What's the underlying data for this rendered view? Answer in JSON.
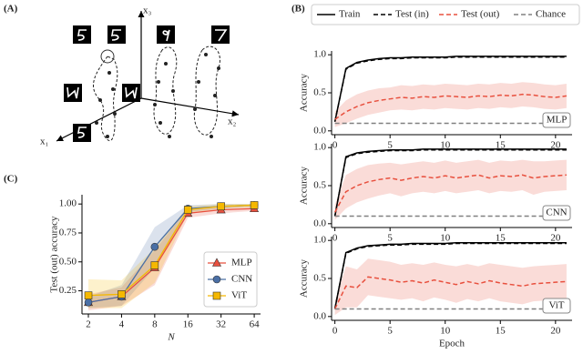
{
  "panel_labels": [
    "(A)",
    "(B)",
    "(C)"
  ],
  "diagram": {
    "axis_labels": [
      "x₁",
      "x₂",
      "x₃"
    ]
  },
  "chart_data": [
    {
      "type": "line",
      "label": "MLP",
      "ylabel": "Accuracy",
      "x": [
        0,
        1,
        2,
        3,
        4,
        5,
        6,
        7,
        8,
        9,
        10,
        11,
        12,
        13,
        14,
        15,
        16,
        17,
        18,
        19,
        20,
        21
      ],
      "xlim": [
        -0.3,
        21.5
      ],
      "xticks": [
        0,
        5,
        10,
        15,
        20
      ],
      "ylim": [
        -0.05,
        1.05
      ],
      "yticks": [
        {
          "value": 0,
          "label": "0.0"
        },
        {
          "value": 0.5,
          "label": "0.5"
        },
        {
          "value": 1,
          "label": "1.0"
        }
      ],
      "series": [
        {
          "name": "Train",
          "color": "#000000",
          "linestyle": "solid",
          "values": [
            0.12,
            0.82,
            0.9,
            0.93,
            0.95,
            0.96,
            0.96,
            0.97,
            0.97,
            0.97,
            0.97,
            0.98,
            0.98,
            0.98,
            0.98,
            0.98,
            0.98,
            0.98,
            0.98,
            0.98,
            0.98,
            0.98
          ]
        },
        {
          "name": "Test (in)",
          "color": "#000000",
          "linestyle": "dashed",
          "values": [
            0.12,
            0.81,
            0.89,
            0.92,
            0.94,
            0.95,
            0.95,
            0.96,
            0.96,
            0.96,
            0.96,
            0.97,
            0.97,
            0.97,
            0.97,
            0.97,
            0.97,
            0.97,
            0.97,
            0.97,
            0.97,
            0.97
          ]
        },
        {
          "name": "Test (out)",
          "color": "#e8503e",
          "linestyle": "dashed",
          "values": [
            0.15,
            0.25,
            0.32,
            0.37,
            0.4,
            0.42,
            0.44,
            0.43,
            0.45,
            0.44,
            0.46,
            0.45,
            0.44,
            0.46,
            0.45,
            0.47,
            0.46,
            0.48,
            0.47,
            0.45,
            0.44,
            0.46
          ],
          "band": {
            "lower": [
              0.05,
              0.1,
              0.16,
              0.21,
              0.24,
              0.27,
              0.28,
              0.27,
              0.29,
              0.28,
              0.3,
              0.29,
              0.28,
              0.3,
              0.29,
              0.31,
              0.3,
              0.32,
              0.31,
              0.29,
              0.28,
              0.3
            ],
            "upper": [
              0.25,
              0.4,
              0.48,
              0.53,
              0.56,
              0.57,
              0.6,
              0.59,
              0.61,
              0.6,
              0.62,
              0.61,
              0.6,
              0.62,
              0.61,
              0.63,
              0.62,
              0.64,
              0.63,
              0.61,
              0.6,
              0.62
            ]
          }
        },
        {
          "name": "Chance",
          "color": "#808080",
          "linestyle": "dashed",
          "values": [
            0.1,
            0.1,
            0.1,
            0.1,
            0.1,
            0.1,
            0.1,
            0.1,
            0.1,
            0.1,
            0.1,
            0.1,
            0.1,
            0.1,
            0.1,
            0.1,
            0.1,
            0.1,
            0.1,
            0.1,
            0.1,
            0.1
          ]
        }
      ]
    },
    {
      "type": "line",
      "label": "CNN",
      "ylabel": "Accuracy",
      "x": [
        0,
        1,
        2,
        3,
        4,
        5,
        6,
        7,
        8,
        9,
        10,
        11,
        12,
        13,
        14,
        15,
        16,
        17,
        18,
        19,
        20,
        21
      ],
      "xlim": [
        -0.3,
        21.5
      ],
      "xticks": [
        0,
        5,
        10,
        15,
        20
      ],
      "ylim": [
        -0.05,
        1.05
      ],
      "yticks": [
        {
          "value": 0,
          "label": "0.0"
        },
        {
          "value": 0.5,
          "label": "0.5"
        },
        {
          "value": 1,
          "label": "1.0"
        }
      ],
      "series": [
        {
          "color": "#000000",
          "linestyle": "solid",
          "values": [
            0.1,
            0.88,
            0.93,
            0.95,
            0.96,
            0.97,
            0.97,
            0.97,
            0.98,
            0.98,
            0.98,
            0.98,
            0.98,
            0.98,
            0.98,
            0.98,
            0.98,
            0.98,
            0.98,
            0.98,
            0.98,
            0.98
          ]
        },
        {
          "color": "#000000",
          "linestyle": "dashed",
          "values": [
            0.1,
            0.87,
            0.92,
            0.94,
            0.95,
            0.96,
            0.96,
            0.96,
            0.97,
            0.97,
            0.97,
            0.97,
            0.97,
            0.97,
            0.97,
            0.97,
            0.97,
            0.97,
            0.97,
            0.97,
            0.97,
            0.97
          ]
        },
        {
          "color": "#e8503e",
          "linestyle": "dashed",
          "values": [
            0.15,
            0.42,
            0.5,
            0.55,
            0.58,
            0.6,
            0.57,
            0.6,
            0.62,
            0.6,
            0.63,
            0.6,
            0.62,
            0.64,
            0.6,
            0.63,
            0.62,
            0.64,
            0.6,
            0.62,
            0.63,
            0.64
          ],
          "band": {
            "lower": [
              0.05,
              0.2,
              0.28,
              0.33,
              0.37,
              0.4,
              0.36,
              0.4,
              0.42,
              0.4,
              0.43,
              0.4,
              0.42,
              0.44,
              0.4,
              0.43,
              0.42,
              0.44,
              0.38,
              0.42,
              0.43,
              0.44
            ],
            "upper": [
              0.25,
              0.64,
              0.72,
              0.77,
              0.79,
              0.8,
              0.78,
              0.8,
              0.82,
              0.8,
              0.83,
              0.8,
              0.82,
              0.84,
              0.8,
              0.83,
              0.82,
              0.84,
              0.82,
              0.82,
              0.83,
              0.84
            ]
          }
        },
        {
          "color": "#808080",
          "linestyle": "dashed",
          "values": [
            0.1,
            0.1,
            0.1,
            0.1,
            0.1,
            0.1,
            0.1,
            0.1,
            0.1,
            0.1,
            0.1,
            0.1,
            0.1,
            0.1,
            0.1,
            0.1,
            0.1,
            0.1,
            0.1,
            0.1,
            0.1,
            0.1
          ]
        }
      ]
    },
    {
      "type": "line",
      "label": "ViT",
      "ylabel": "Accuracy",
      "xlabel": "Epoch",
      "x": [
        0,
        1,
        2,
        3,
        4,
        5,
        6,
        7,
        8,
        9,
        10,
        11,
        12,
        13,
        14,
        15,
        16,
        17,
        18,
        19,
        20,
        21
      ],
      "xlim": [
        -0.3,
        21.5
      ],
      "xticks": [
        0,
        5,
        10,
        15,
        20
      ],
      "ylim": [
        -0.05,
        1.05
      ],
      "yticks": [
        {
          "value": 0,
          "label": "0.0"
        },
        {
          "value": 0.5,
          "label": "0.5"
        },
        {
          "value": 1,
          "label": "1.0"
        }
      ],
      "series": [
        {
          "color": "#000000",
          "linestyle": "solid",
          "values": [
            0.1,
            0.84,
            0.9,
            0.93,
            0.94,
            0.95,
            0.95,
            0.96,
            0.96,
            0.96,
            0.96,
            0.97,
            0.97,
            0.97,
            0.97,
            0.97,
            0.97,
            0.97,
            0.97,
            0.97,
            0.97,
            0.97
          ]
        },
        {
          "color": "#000000",
          "linestyle": "dashed",
          "values": [
            0.1,
            0.83,
            0.89,
            0.92,
            0.93,
            0.94,
            0.94,
            0.95,
            0.95,
            0.95,
            0.95,
            0.96,
            0.96,
            0.96,
            0.96,
            0.96,
            0.96,
            0.96,
            0.96,
            0.96,
            0.96,
            0.96
          ]
        },
        {
          "color": "#e8503e",
          "linestyle": "dashed",
          "values": [
            0.1,
            0.4,
            0.38,
            0.52,
            0.5,
            0.48,
            0.45,
            0.47,
            0.44,
            0.48,
            0.45,
            0.42,
            0.46,
            0.43,
            0.47,
            0.44,
            0.42,
            0.4,
            0.43,
            0.44,
            0.45,
            0.46
          ],
          "band": {
            "lower": [
              0.02,
              0.12,
              0.12,
              0.28,
              0.26,
              0.24,
              0.22,
              0.24,
              0.2,
              0.25,
              0.22,
              0.18,
              0.23,
              0.2,
              0.24,
              0.2,
              0.18,
              0.16,
              0.2,
              0.21,
              0.22,
              0.23
            ],
            "upper": [
              0.2,
              0.66,
              0.62,
              0.76,
              0.74,
              0.72,
              0.68,
              0.7,
              0.68,
              0.71,
              0.68,
              0.66,
              0.69,
              0.66,
              0.7,
              0.68,
              0.66,
              0.64,
              0.66,
              0.67,
              0.68,
              0.69
            ]
          }
        },
        {
          "color": "#808080",
          "linestyle": "dashed",
          "values": [
            0.1,
            0.1,
            0.1,
            0.1,
            0.1,
            0.1,
            0.1,
            0.1,
            0.1,
            0.1,
            0.1,
            0.1,
            0.1,
            0.1,
            0.1,
            0.1,
            0.1,
            0.1,
            0.1,
            0.1,
            0.1,
            0.1
          ]
        }
      ]
    },
    {
      "type": "line",
      "xscale": "log",
      "ylabel": "Test (out) accuracy",
      "xlabel": "N",
      "legend": "lower right",
      "x": [
        2,
        4,
        8,
        16,
        32,
        64
      ],
      "xlim": [
        1.75,
        73
      ],
      "xticks": [
        2,
        4,
        8,
        16,
        32,
        64
      ],
      "ylim": [
        0.05,
        1.08
      ],
      "yticks": [
        {
          "value": 0.25,
          "label": "0.25"
        },
        {
          "value": 0.5,
          "label": "0.50"
        },
        {
          "value": 0.75,
          "label": "0.75"
        },
        {
          "value": 1,
          "label": "1.00"
        }
      ],
      "series": [
        {
          "name": "MLP",
          "color": "#e8503e",
          "marker": "triangle",
          "values": [
            0.15,
            0.2,
            0.45,
            0.92,
            0.95,
            0.96
          ],
          "band": {
            "lower": [
              0.08,
              0.12,
              0.3,
              0.88,
              0.92,
              0.94
            ],
            "upper": [
              0.22,
              0.28,
              0.6,
              0.96,
              0.98,
              0.98
            ]
          }
        },
        {
          "name": "CNN",
          "color": "#4a6fa5",
          "marker": "circle",
          "values": [
            0.15,
            0.2,
            0.63,
            0.96,
            0.98,
            0.99
          ],
          "band": {
            "lower": [
              0.1,
              0.12,
              0.45,
              0.93,
              0.96,
              0.98
            ],
            "upper": [
              0.2,
              0.3,
              0.8,
              0.99,
              1.0,
              1.0
            ]
          }
        },
        {
          "name": "ViT",
          "color": "#f5b800",
          "marker": "square",
          "values": [
            0.21,
            0.22,
            0.47,
            0.95,
            0.98,
            0.99
          ],
          "band": {
            "lower": [
              0.1,
              0.1,
              0.32,
              0.92,
              0.96,
              0.97
            ],
            "upper": [
              0.35,
              0.34,
              0.62,
              0.98,
              1.0,
              1.0
            ]
          }
        }
      ]
    }
  ]
}
